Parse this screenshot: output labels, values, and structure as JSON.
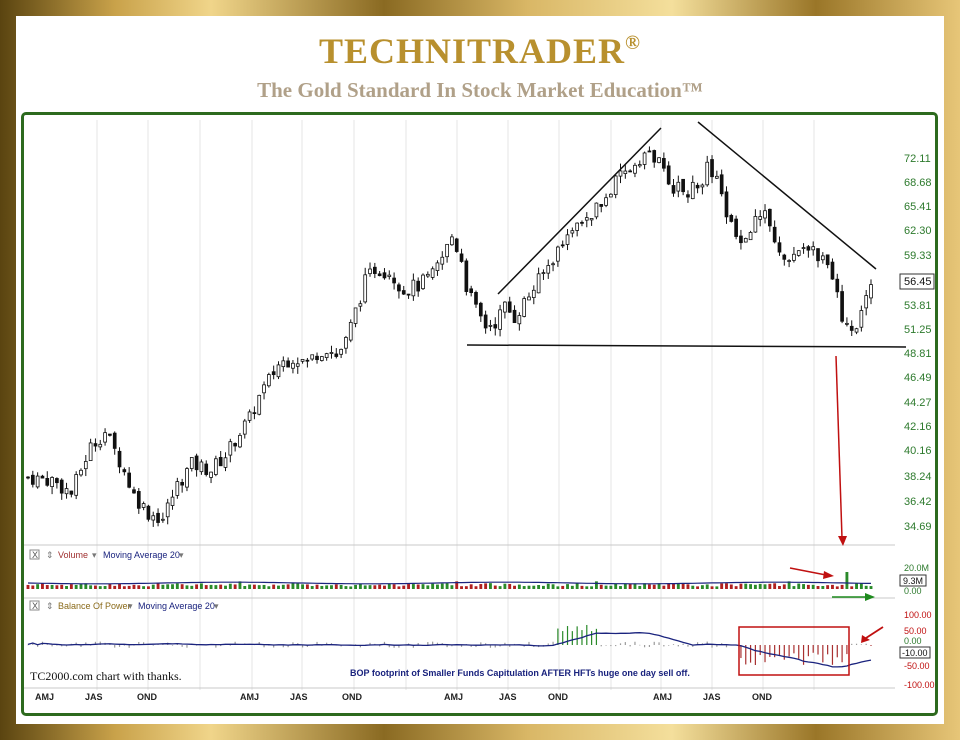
{
  "header": {
    "brand": "TECHNITRADER",
    "registered": "®",
    "tagline": "The Gold Standard In Stock Market Education™"
  },
  "colors": {
    "gold": "#b8902e",
    "frame_green": "#2d6a1e",
    "up_bar": "#1a1a1a",
    "volume_up": "#2a8a2a",
    "volume_down": "#b02020",
    "moving_average": "#1a237e",
    "annotation_red": "#c01010",
    "annotation_green": "#1d8a1d"
  },
  "price_panel": {
    "y_ticks": [
      "72.11",
      "68.68",
      "65.41",
      "62.30",
      "59.33",
      "56.45",
      "53.81",
      "51.25",
      "48.81",
      "46.49",
      "44.27",
      "42.16",
      "40.16",
      "38.24",
      "36.42",
      "34.69"
    ],
    "last_price": "56.45"
  },
  "volume_panel": {
    "close_icon": "X",
    "indicator_label": "Volume",
    "ma_label": "Moving Average 20",
    "y_ticks": [
      "20.0M",
      "9.3M",
      "0.00"
    ]
  },
  "bop_panel": {
    "close_icon": "X",
    "indicator_label": "Balance Of Power",
    "ma_label": "Moving Average 20",
    "y_ticks": [
      "100.00",
      "50.00",
      "0.00",
      "-10.00",
      "-50.00",
      "-100.00"
    ],
    "credit": "TC2000.com  chart with thanks.",
    "annotation": "BOP footprint of Smaller Funds Capitulation AFTER HFTs huge one day sell off."
  },
  "x_axis": {
    "labels": [
      "AMJ",
      "JAS",
      "OND",
      "AMJ",
      "JAS",
      "OND",
      "AMJ",
      "JAS",
      "OND",
      "AMJ",
      "JAS",
      "OND"
    ]
  },
  "chart_data": {
    "type": "candlestick",
    "ylim": [
      33.5,
      74.0
    ],
    "y_scale": "log",
    "sessions": 176,
    "close_path": [
      [
        0,
        38.2
      ],
      [
        5,
        38.0
      ],
      [
        9,
        37.0
      ],
      [
        13,
        40.6
      ],
      [
        16,
        41.8
      ],
      [
        19,
        39.5
      ],
      [
        22,
        36.9
      ],
      [
        25,
        35.6
      ],
      [
        28,
        35.2
      ],
      [
        31,
        37.6
      ],
      [
        34,
        39.2
      ],
      [
        36,
        39.0
      ],
      [
        38,
        38.8
      ],
      [
        41,
        39.9
      ],
      [
        44,
        41.8
      ],
      [
        46,
        42.9
      ],
      [
        48,
        44.8
      ],
      [
        50,
        46.3
      ],
      [
        52,
        47.8
      ],
      [
        55,
        48.5
      ],
      [
        58,
        48.0
      ],
      [
        60,
        48.9
      ],
      [
        62,
        49.4
      ],
      [
        64,
        48.6
      ],
      [
        66,
        50.0
      ],
      [
        68,
        53.1
      ],
      [
        70,
        56.3
      ],
      [
        72,
        57.8
      ],
      [
        75,
        57.5
      ],
      [
        78,
        55.4
      ],
      [
        81,
        55.9
      ],
      [
        84,
        57.0
      ],
      [
        86,
        59.0
      ],
      [
        88,
        61.6
      ],
      [
        90,
        58.9
      ],
      [
        91,
        55.9
      ],
      [
        93,
        53.2
      ],
      [
        95,
        51.6
      ],
      [
        97,
        52.0
      ],
      [
        99,
        53.6
      ],
      [
        101,
        52.5
      ],
      [
        104,
        54.8
      ],
      [
        107,
        57.2
      ],
      [
        110,
        60.0
      ],
      [
        113,
        62.3
      ],
      [
        116,
        64.0
      ],
      [
        119,
        65.4
      ],
      [
        122,
        68.5
      ],
      [
        125,
        70.4
      ],
      [
        127,
        72.1
      ],
      [
        129,
        72.6
      ],
      [
        131,
        71.2
      ],
      [
        133,
        68.5
      ],
      [
        136,
        67.3
      ],
      [
        139,
        67.8
      ],
      [
        141,
        70.5
      ],
      [
        143,
        68.5
      ],
      [
        145,
        64.5
      ],
      [
        147,
        61.5
      ],
      [
        149,
        62.0
      ],
      [
        151,
        63.5
      ],
      [
        153,
        64.8
      ],
      [
        155,
        60.4
      ],
      [
        157,
        58.9
      ],
      [
        159,
        60.1
      ],
      [
        161,
        60.8
      ],
      [
        163,
        60.0
      ],
      [
        165,
        58.8
      ],
      [
        166,
        57.5
      ],
      [
        168,
        55.0
      ],
      [
        169,
        51.6
      ],
      [
        171,
        50.8
      ],
      [
        173,
        53.0
      ],
      [
        175,
        56.4
      ]
    ],
    "series": [
      {
        "name": "Volume",
        "values_millions": "daily volume mostly 2–8M; spike to ~20M near session 170"
      },
      {
        "name": "Balance Of Power",
        "ylim": [
          -100,
          100
        ],
        "last_value": -10.0
      }
    ]
  }
}
